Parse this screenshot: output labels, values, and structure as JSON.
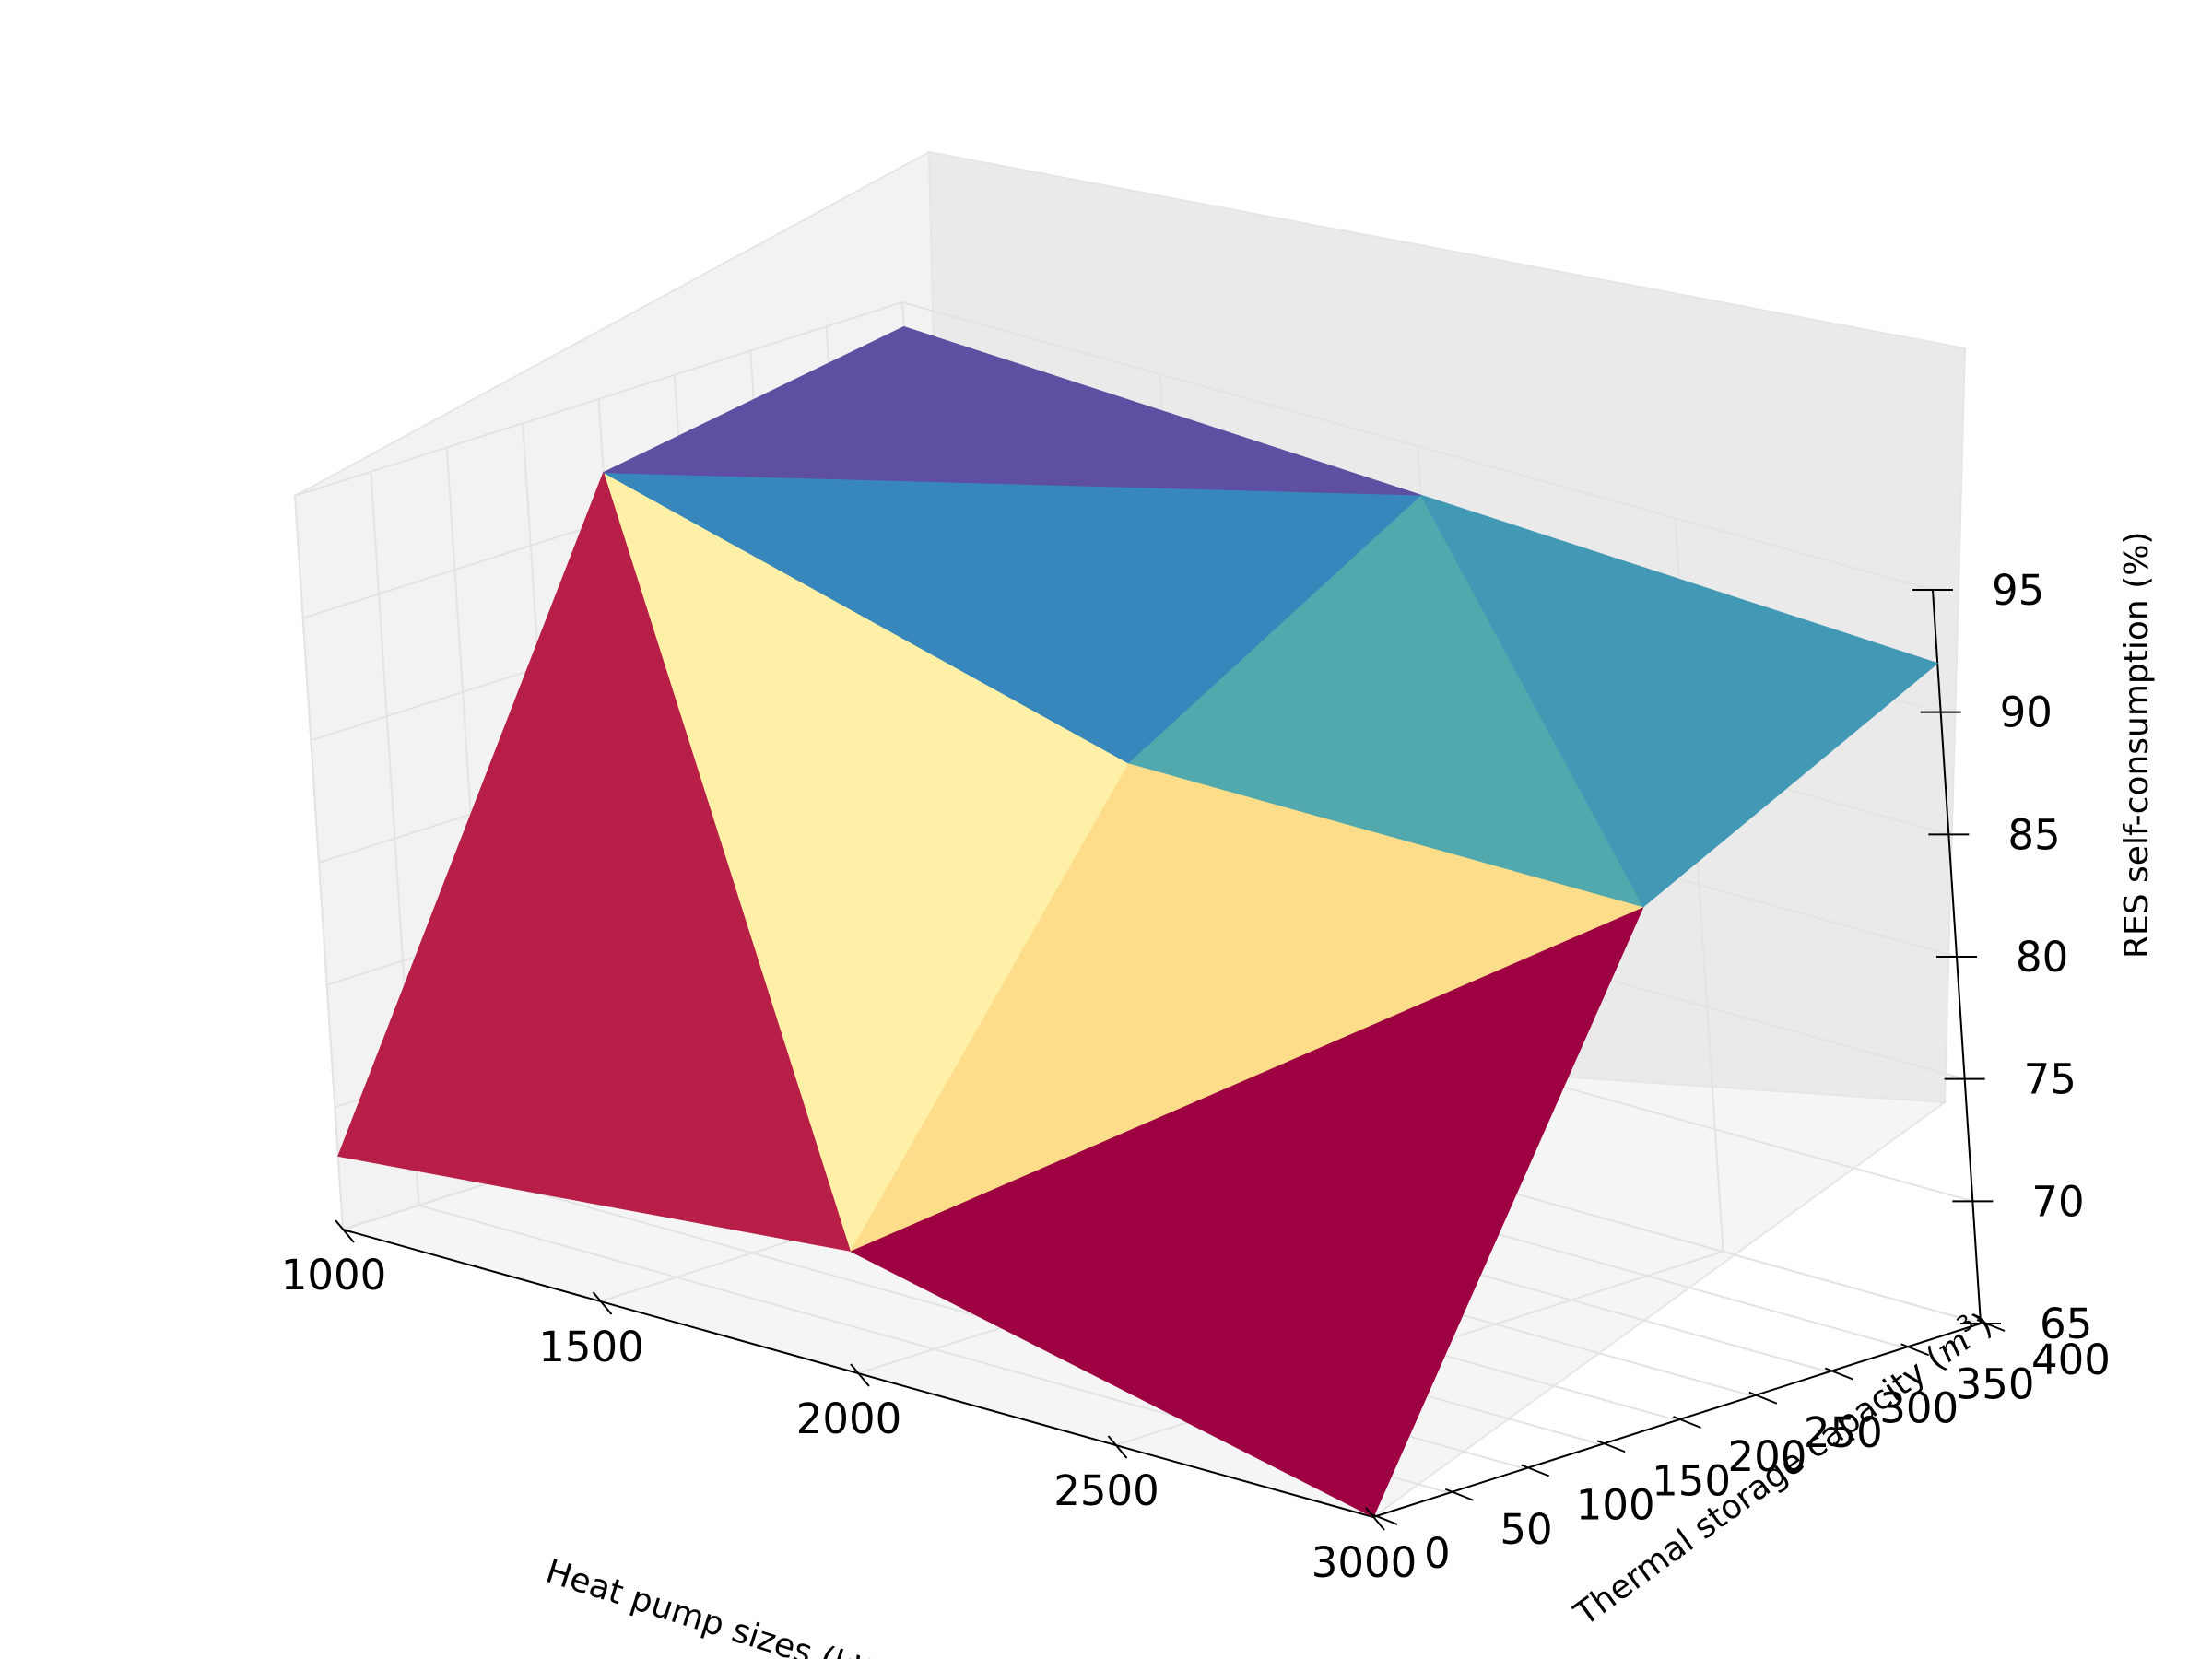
{
  "chart_data": {
    "type": "surface3d",
    "xlabel": "Heat pump sizes (kW)",
    "ylabel_main": "Thermal storage capacity (",
    "ylabel_math": "m",
    "ylabel_sup": "3",
    "ylabel_close": ")",
    "zlabel": "RES self-consumption (%)",
    "xlim": [
      1000,
      3000
    ],
    "ylim": [
      0,
      400
    ],
    "zlim": [
      65,
      95
    ],
    "x_ticks": [
      "1000",
      "1500",
      "2000",
      "2500",
      "3000"
    ],
    "y_ticks": [
      "0",
      "50",
      "100",
      "150",
      "200",
      "250",
      "300",
      "350",
      "400"
    ],
    "z_ticks": [
      "65",
      "70",
      "75",
      "80",
      "85",
      "90",
      "95"
    ],
    "grid": true,
    "surface_points": [
      {
        "x": 1000,
        "y": 0,
        "z": 68
      },
      {
        "x": 2000,
        "y": 0,
        "z": 70
      },
      {
        "x": 3000,
        "y": 0,
        "z": 65
      },
      {
        "x": 1000,
        "y": 200,
        "z": 92
      },
      {
        "x": 2000,
        "y": 200,
        "z": 86
      },
      {
        "x": 3000,
        "y": 200,
        "z": 86
      },
      {
        "x": 1000,
        "y": 400,
        "z": 94
      },
      {
        "x": 2000,
        "y": 400,
        "z": 93
      },
      {
        "x": 3000,
        "y": 400,
        "z": 92
      }
    ],
    "faces": [
      {
        "v": [
          0,
          1,
          3
        ],
        "color": "#b81f48"
      },
      {
        "v": [
          1,
          4,
          3
        ],
        "color": "#fef0a7"
      },
      {
        "v": [
          1,
          5,
          4
        ],
        "color": "#fddd8a"
      },
      {
        "v": [
          1,
          2,
          5
        ],
        "color": "#9e0142"
      },
      {
        "v": [
          3,
          4,
          7
        ],
        "color": "#3787bc"
      },
      {
        "v": [
          3,
          7,
          6
        ],
        "color": "#5e4fa2"
      },
      {
        "v": [
          4,
          5,
          7
        ],
        "color": "#51a9ae"
      },
      {
        "v": [
          5,
          8,
          7
        ],
        "color": "#4299b5"
      }
    ]
  }
}
